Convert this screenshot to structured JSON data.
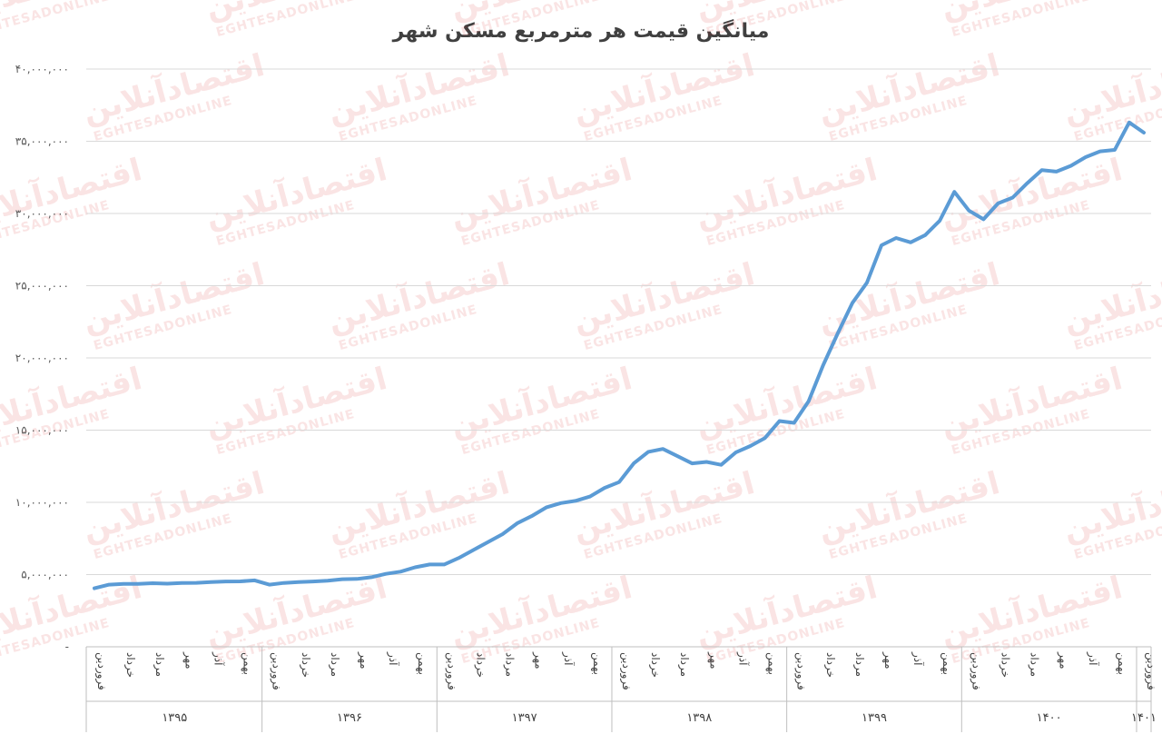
{
  "chart_data": {
    "type": "line",
    "title": "میانگین قیمت هر مترمربع مسکن شهر",
    "watermark": {
      "fa": "اقتصادآنلاین",
      "en": "EGHTESADONLINE"
    },
    "y_ticks": [
      "-",
      "۵,۰۰۰,۰۰۰",
      "۱۰,۰۰۰,۰۰۰",
      "۱۵,۰۰۰,۰۰۰",
      "۲۰,۰۰۰,۰۰۰",
      "۲۵,۰۰۰,۰۰۰",
      "۳۰,۰۰۰,۰۰۰",
      "۳۵,۰۰۰,۰۰۰",
      "۴۰,۰۰۰,۰۰۰"
    ],
    "ylim": [
      0,
      40000000
    ],
    "grid": true,
    "line_color": "#5b9bd5",
    "month_labels": [
      "فروردین",
      "خرداد",
      "مرداد",
      "مهر",
      "آذر",
      "بهمن"
    ],
    "years": [
      "۱۳۹۵",
      "۱۳۹۶",
      "۱۳۹۷",
      "۱۳۹۸",
      "۱۳۹۹",
      "۱۴۰۰",
      "۱۴۰۱"
    ],
    "series": [
      {
        "values": [
          4050000,
          4300000,
          4350000,
          4350000,
          4400000,
          4370000,
          4420000,
          4430000,
          4480000,
          4520000,
          4530000,
          4600000,
          4300000,
          4420000,
          4480000,
          4520000,
          4570000,
          4680000,
          4700000,
          4820000,
          5050000,
          5200000,
          5500000,
          5700000,
          5700000,
          6150000,
          6700000,
          7250000,
          7800000,
          8550000,
          9050000,
          9650000,
          9950000,
          10100000,
          10400000,
          11000000,
          11400000,
          12700000,
          13500000,
          13700000,
          13200000,
          12700000,
          12800000,
          12600000,
          13450000,
          13900000,
          14450000,
          15630000,
          15500000,
          17000000,
          19500000,
          21700000,
          23800000,
          25200000,
          27800000,
          28300000,
          28000000,
          28500000,
          29500000,
          31500000,
          30200000,
          29600000,
          30700000,
          31100000,
          32100000,
          33000000,
          32900000,
          33300000,
          33900000,
          34300000,
          34400000,
          36300000,
          35600000
        ]
      }
    ]
  }
}
